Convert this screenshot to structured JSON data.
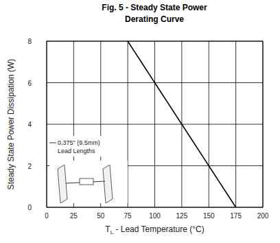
{
  "chart_data": {
    "type": "line",
    "title": "Fig. 5 - Steady State Power",
    "subtitle": "Derating Curve",
    "xlabel": "TL - Lead Temperature (°C)",
    "ylabel": "Steady State Power  Dissipation (W)",
    "annotations": [
      "0.375\" (9.5mm)",
      "Lead Lengths"
    ],
    "x": [
      75,
      175
    ],
    "series": [
      {
        "name": "Steady State Power Dissipation",
        "color": "#000000",
        "values": [
          8,
          0
        ]
      }
    ],
    "xlim": [
      0,
      200
    ],
    "xticks": [
      0,
      25,
      50,
      75,
      100,
      125,
      150,
      175,
      200
    ],
    "ylim": [
      0,
      8
    ],
    "yticks": [
      0,
      2,
      4,
      6,
      8
    ],
    "grid": true
  }
}
